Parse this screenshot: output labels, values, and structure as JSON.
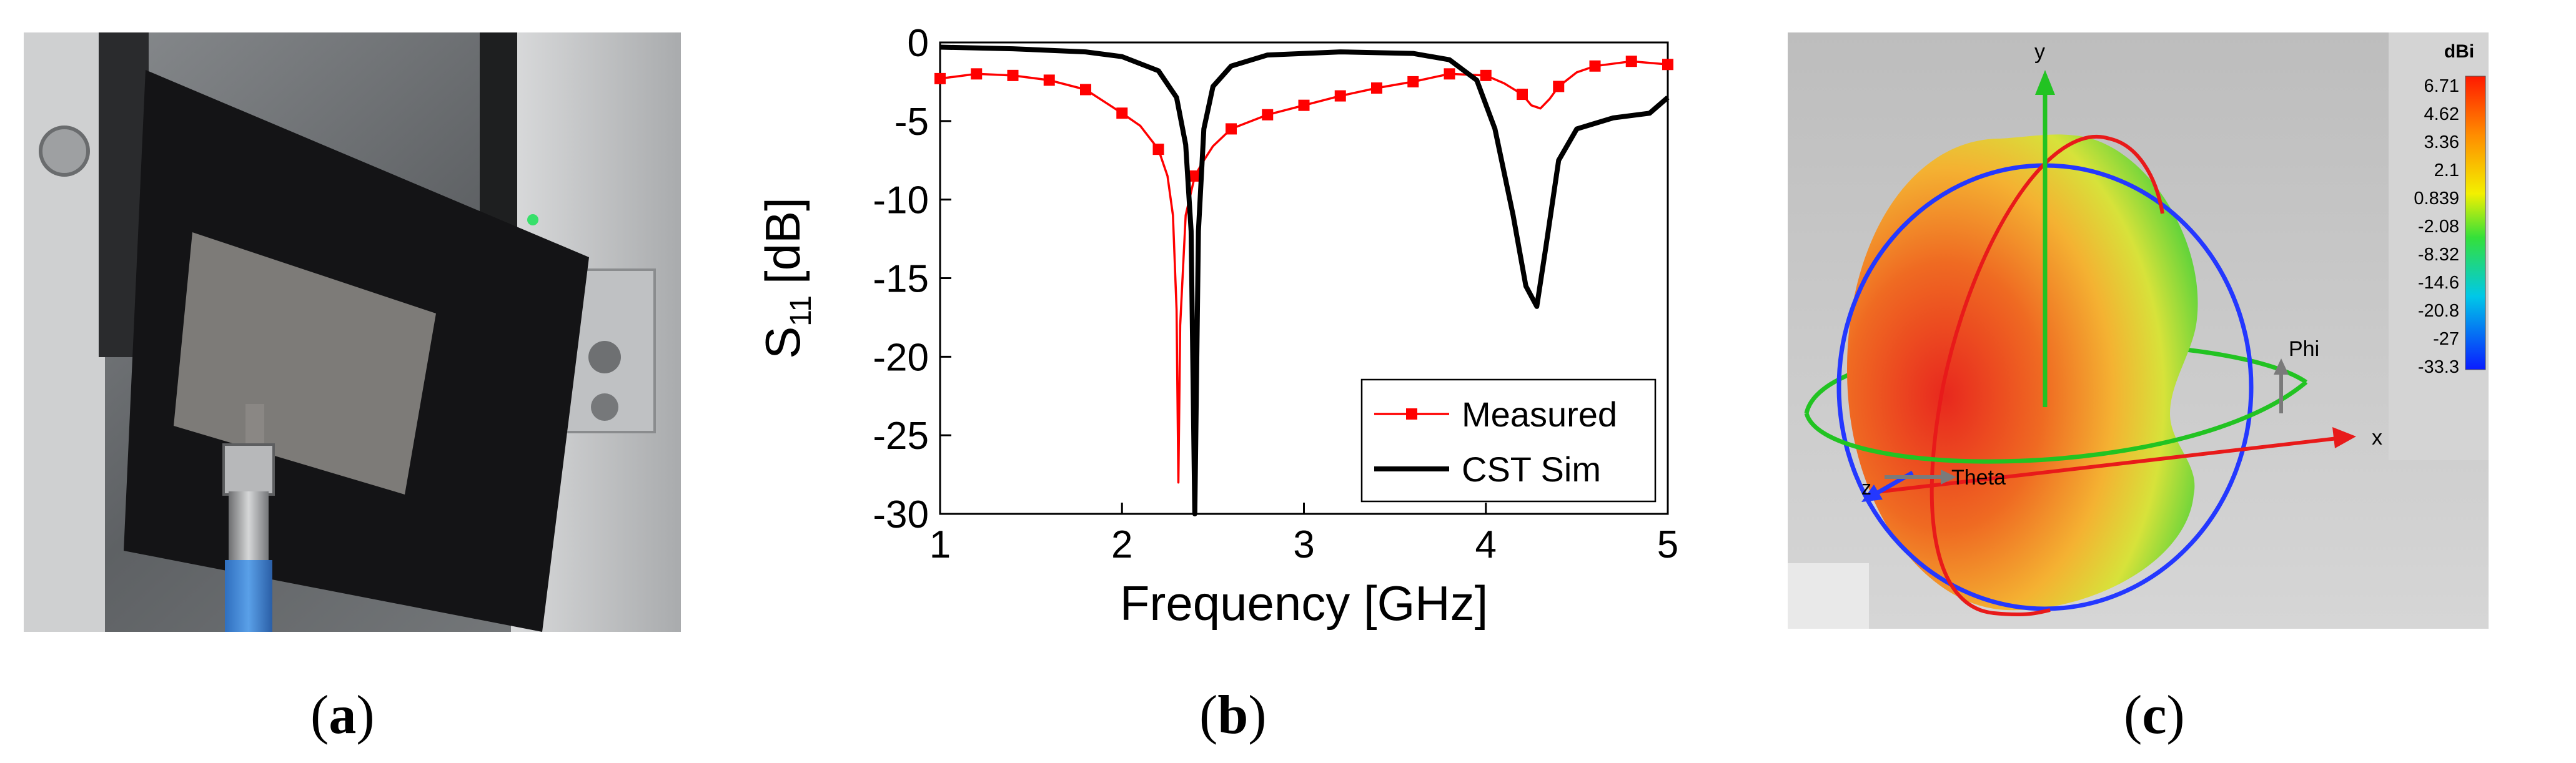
{
  "panels": {
    "a": {
      "label_open": "(",
      "letter": "a",
      "label_close": ")"
    },
    "b": {
      "label_open": "(",
      "letter": "b",
      "label_close": ")"
    },
    "c": {
      "label_open": "(",
      "letter": "c",
      "label_close": ")"
    }
  },
  "chart_data": {
    "type": "line",
    "title": "",
    "xlabel": "Frequency [GHz]",
    "ylabel_main": "S",
    "ylabel_sub": "11",
    "ylabel_unit": "[dB]",
    "xlim": [
      1,
      5
    ],
    "ylim": [
      -30,
      0
    ],
    "xticks": [
      "1",
      "2",
      "3",
      "4",
      "5"
    ],
    "yticks": [
      "0",
      "-5",
      "-10",
      "-15",
      "-20",
      "-25",
      "-30"
    ],
    "grid": false,
    "legend_position": "bottom-right",
    "series": [
      {
        "name": "Measured",
        "color": "#ff0000",
        "marker": "square",
        "x": [
          1.0,
          1.2,
          1.4,
          1.6,
          1.8,
          2.0,
          2.1,
          2.2,
          2.25,
          2.28,
          2.3,
          2.31,
          2.32,
          2.35,
          2.4,
          2.45,
          2.5,
          2.6,
          2.8,
          3.0,
          3.2,
          3.4,
          3.6,
          3.8,
          4.0,
          4.1,
          4.2,
          4.25,
          4.3,
          4.35,
          4.4,
          4.5,
          4.6,
          4.8,
          5.0
        ],
        "y": [
          -2.3,
          -2.0,
          -2.1,
          -2.4,
          -3.0,
          -4.5,
          -5.3,
          -6.8,
          -8.5,
          -11,
          -17,
          -28,
          -18,
          -11,
          -8.5,
          -7.5,
          -6.6,
          -5.5,
          -4.6,
          -4.0,
          -3.4,
          -2.9,
          -2.5,
          -2.0,
          -2.1,
          -2.6,
          -3.3,
          -4.0,
          -4.2,
          -3.6,
          -2.8,
          -1.9,
          -1.5,
          -1.2,
          -1.4
        ],
        "marker_x": [
          1.0,
          1.2,
          1.4,
          1.6,
          1.8,
          2.0,
          2.2,
          2.4,
          2.6,
          2.8,
          3.0,
          3.2,
          3.4,
          3.6,
          3.8,
          4.0,
          4.2,
          4.4,
          4.6,
          4.8,
          5.0
        ]
      },
      {
        "name": "CST Sim",
        "color": "#000000",
        "marker": "none",
        "x": [
          1.0,
          1.4,
          1.8,
          2.0,
          2.2,
          2.3,
          2.35,
          2.38,
          2.4,
          2.42,
          2.45,
          2.5,
          2.6,
          2.8,
          3.2,
          3.6,
          3.8,
          3.95,
          4.05,
          4.15,
          4.22,
          4.28,
          4.33,
          4.4,
          4.5,
          4.7,
          4.9,
          5.0
        ],
        "y": [
          -0.3,
          -0.4,
          -0.6,
          -0.9,
          -1.8,
          -3.5,
          -6.5,
          -12,
          -30,
          -12,
          -5.5,
          -2.8,
          -1.5,
          -0.8,
          -0.6,
          -0.7,
          -1.1,
          -2.4,
          -5.5,
          -11,
          -15.5,
          -16.8,
          -13,
          -7.5,
          -5.5,
          -4.8,
          -4.5,
          -3.5
        ]
      }
    ]
  },
  "pattern": {
    "colorbar_unit": "dBi",
    "colorbar_ticks": [
      "6.71",
      "4.62",
      "3.36",
      "2.1",
      "0.839",
      "-2.08",
      "-8.32",
      "-14.6",
      "-20.8",
      "-27",
      "-33.3"
    ],
    "axis_labels": {
      "x": "x",
      "y": "y",
      "z": "z",
      "phi": "Phi",
      "theta": "Theta"
    }
  }
}
